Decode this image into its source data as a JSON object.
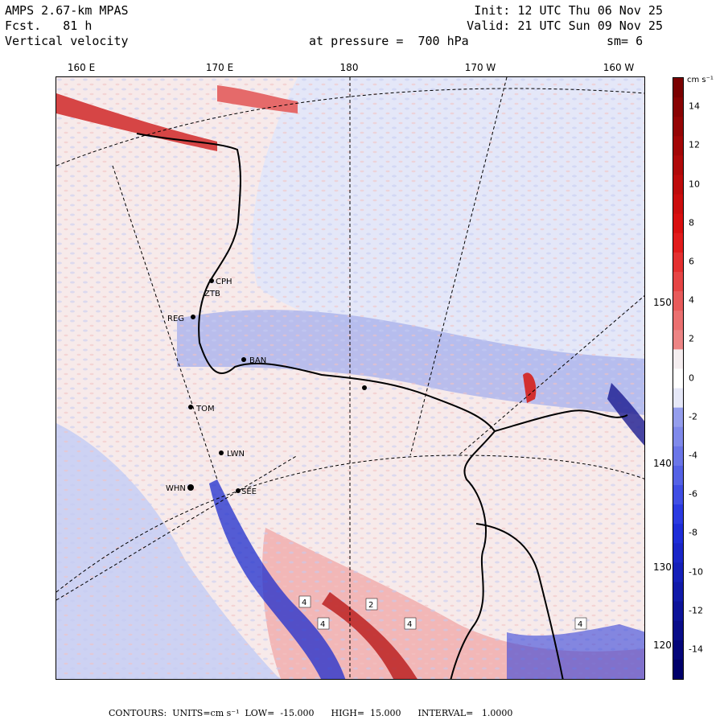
{
  "header": {
    "model": "AMPS 2.67-km MPAS",
    "fcst_label": "Fcst.",
    "fcst_value": "81 h",
    "field": "Vertical velocity",
    "init": "Init: 12 UTC Thu 06 Nov 25",
    "valid": "Valid: 21 UTC Sun 09 Nov 25",
    "pressure": "at pressure =  700 hPa",
    "smoothing": "sm= 6"
  },
  "map": {
    "longitude_labels": [
      "160 E",
      "170 E",
      "180",
      "170 W",
      "160 W"
    ],
    "latitude_labels": [
      "150 W",
      "140 W",
      "130 W",
      "120 W"
    ],
    "stations": [
      "CPH",
      "ZTB",
      "REG",
      "BAN",
      "TOM",
      "LWN",
      "WHN",
      "SEE"
    ],
    "shaded_region_labels": [
      "4",
      "2",
      "4",
      "4",
      "4"
    ]
  },
  "colorbar": {
    "unit": "cm s⁻¹",
    "labels": [
      "14",
      "12",
      "10",
      "8",
      "6",
      "4",
      "2",
      "0",
      "-2",
      "-4",
      "-6",
      "-8",
      "-10",
      "-12",
      "-14"
    ],
    "colors": {
      "red_dark": "#7a0000",
      "red_mid": "#e01010",
      "red_light": "#f2b0b0",
      "neutral": "#f5eef0",
      "blue_light": "#c0c6f2",
      "blue_mid": "#2030e0",
      "blue_dark": "#00006a"
    }
  },
  "footer": {
    "text": "CONTOURS:  UNITS=cm s⁻¹  LOW=  -15.000      HIGH=  15.000      INTERVAL=   1.0000"
  }
}
